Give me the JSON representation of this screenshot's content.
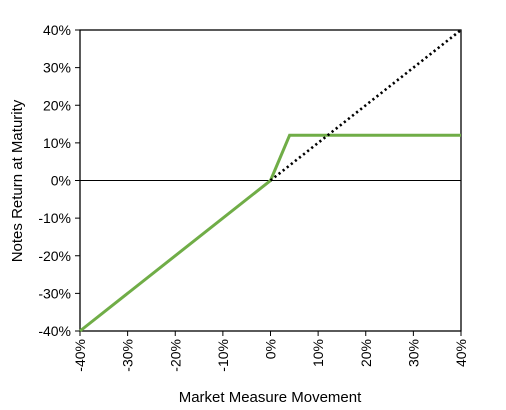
{
  "chart_data": {
    "type": "line",
    "title": "",
    "xlabel": "Market Measure Movement",
    "ylabel": "Notes Return at Maturity",
    "xlim": [
      -40,
      40
    ],
    "ylim": [
      -40,
      40
    ],
    "x_ticks": [
      -40,
      -30,
      -20,
      -10,
      0,
      10,
      20,
      30,
      40
    ],
    "y_ticks": [
      -40,
      -30,
      -20,
      -10,
      0,
      10,
      20,
      30,
      40
    ],
    "x_tick_labels": [
      "-40%",
      "-30%",
      "-20%",
      "-10%",
      "0%",
      "10%",
      "20%",
      "30%",
      "40%"
    ],
    "y_tick_labels": [
      "-40%",
      "-30%",
      "-20%",
      "-10%",
      "0%",
      "10%",
      "20%",
      "30%",
      "40%"
    ],
    "grid": false,
    "zero_line": true,
    "series": [
      {
        "style": "solid",
        "color": "#70ad47",
        "points": [
          [
            -40,
            -40
          ],
          [
            0,
            0
          ],
          [
            4,
            12
          ],
          [
            40,
            12
          ]
        ]
      },
      {
        "style": "dotted",
        "color": "#000000",
        "points": [
          [
            0,
            0
          ],
          [
            40,
            40
          ]
        ]
      }
    ]
  }
}
